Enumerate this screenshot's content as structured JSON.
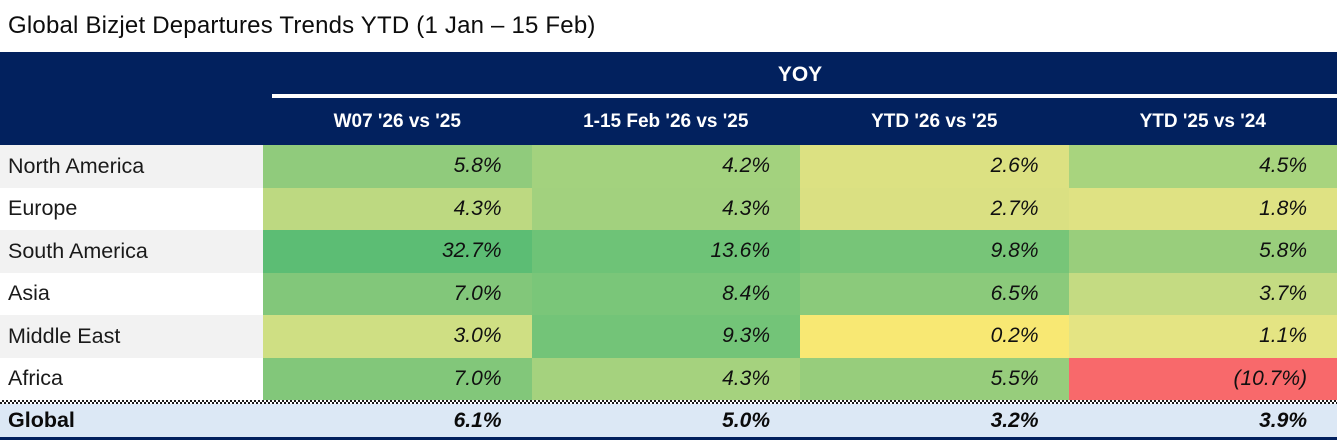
{
  "title": "Global Bizjet Departures Trends YTD (1 Jan – 15 Feb)",
  "table": {
    "group_header": "YOY",
    "columns": [
      "W07 '26 vs '25",
      "1-15 Feb '26 vs '25",
      "YTD '26 vs '25",
      "YTD '25 vs '24"
    ],
    "rows": [
      {
        "label": "North America",
        "values": [
          "5.8%",
          "4.2%",
          "2.6%",
          "4.5%"
        ],
        "colors": [
          "#90CB7C",
          "#A3D27E",
          "#DCE182",
          "#A8D47E"
        ]
      },
      {
        "label": "Europe",
        "values": [
          "4.3%",
          "4.3%",
          "2.7%",
          "1.8%"
        ],
        "colors": [
          "#BDD981",
          "#A2D17E",
          "#DAE082",
          "#DFE283"
        ]
      },
      {
        "label": "South America",
        "values": [
          "32.7%",
          "13.6%",
          "9.8%",
          "5.8%"
        ],
        "colors": [
          "#5CBD74",
          "#6EC377",
          "#77C578",
          "#99CE7C"
        ]
      },
      {
        "label": "Asia",
        "values": [
          "7.0%",
          "8.4%",
          "6.5%",
          "3.7%"
        ],
        "colors": [
          "#82C77A",
          "#7AC679",
          "#8BCA7B",
          "#C4DB82"
        ]
      },
      {
        "label": "Middle East",
        "values": [
          "3.0%",
          "9.3%",
          "0.2%",
          "1.1%"
        ],
        "colors": [
          "#CFDF83",
          "#73C478",
          "#F8E873",
          "#E4E483"
        ]
      },
      {
        "label": "Africa",
        "values": [
          "7.0%",
          "4.3%",
          "5.5%",
          "(10.7%)"
        ],
        "colors": [
          "#82C77A",
          "#A5D27E",
          "#97CD7C",
          "#F8696B"
        ]
      }
    ],
    "footer": {
      "label": "Global",
      "values": [
        "6.1%",
        "5.0%",
        "3.2%",
        "3.9%"
      ]
    }
  },
  "colors": {
    "header_bg": "#02215E",
    "header_text": "#FFFFFF",
    "footer_bg": "#DCE8F5",
    "alt_row_bg": "#F2F2F2",
    "row_bg": "#FFFFFF",
    "bottom_border": "#02215E",
    "scale_max_green": "#5CBD74",
    "scale_mid_yellow": "#F8E873",
    "scale_min_red": "#F8696B"
  },
  "chart_data": {
    "type": "heatmap",
    "title": "Global Bizjet Departures Trends YTD (1 Jan – 15 Feb)",
    "group_header": "YOY",
    "columns": [
      "W07 '26 vs '25",
      "1-15 Feb '26 vs '25",
      "YTD '26 vs '25",
      "YTD '25 vs '24"
    ],
    "rows": [
      "North America",
      "Europe",
      "South America",
      "Asia",
      "Middle East",
      "Africa",
      "Global"
    ],
    "values_pct": [
      [
        5.8,
        4.2,
        2.6,
        4.5
      ],
      [
        4.3,
        4.3,
        2.7,
        1.8
      ],
      [
        32.7,
        13.6,
        9.8,
        5.8
      ],
      [
        7.0,
        8.4,
        6.5,
        3.7
      ],
      [
        3.0,
        9.3,
        0.2,
        1.1
      ],
      [
        7.0,
        4.3,
        5.5,
        -10.7
      ],
      [
        6.1,
        5.0,
        3.2,
        3.9
      ]
    ],
    "value_format": "percent, negatives in parentheses, italic",
    "color_scale": "red-yellow-green conditional formatting on region rows; Global summary row on light blue, no scale"
  }
}
